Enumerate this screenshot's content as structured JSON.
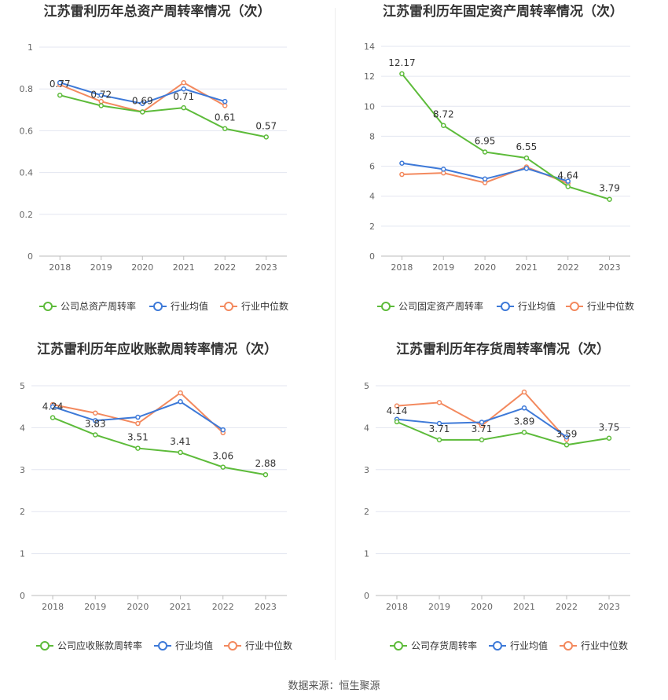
{
  "colors": {
    "company": "#5dbb3a",
    "industry_avg": "#3d79d8",
    "industry_median": "#f3895e"
  },
  "source": "数据来源：恒生聚源",
  "chart_data": [
    {
      "type": "line",
      "title": "江苏雷利历年总资产周转率情况（次）",
      "x": [
        "2018",
        "2019",
        "2020",
        "2021",
        "2022",
        "2023"
      ],
      "ylim": [
        0,
        1
      ],
      "yticks": [
        "0",
        "0.2",
        "0.4",
        "0.6",
        "0.8",
        "1"
      ],
      "ytick_values": [
        0,
        0.2,
        0.4,
        0.6,
        0.8,
        1
      ],
      "grid": true,
      "legend_position": "bottom",
      "series": [
        {
          "name": "公司总资产周转率",
          "values": [
            0.77,
            0.72,
            0.69,
            0.71,
            0.61,
            0.57
          ],
          "labels": [
            "0.77",
            "0.72",
            "0.69",
            "0.71",
            "0.61",
            "0.57"
          ]
        },
        {
          "name": "行业均值",
          "values": [
            0.83,
            0.77,
            0.73,
            0.8,
            0.74,
            null
          ]
        },
        {
          "name": "行业中位数",
          "values": [
            0.82,
            0.74,
            0.69,
            0.83,
            0.72,
            null
          ]
        }
      ]
    },
    {
      "type": "line",
      "title": "江苏雷利历年固定资产周转率情况（次）",
      "x": [
        "2018",
        "2019",
        "2020",
        "2021",
        "2022",
        "2023"
      ],
      "ylim": [
        0,
        14
      ],
      "yticks": [
        "0",
        "2",
        "4",
        "6",
        "8",
        "10",
        "12",
        "14"
      ],
      "ytick_values": [
        0,
        2,
        4,
        6,
        8,
        10,
        12,
        14
      ],
      "grid": true,
      "legend_position": "bottom",
      "series": [
        {
          "name": "公司固定资产周转率",
          "values": [
            12.17,
            8.72,
            6.95,
            6.55,
            4.64,
            3.79
          ],
          "labels": [
            "12.17",
            "8.72",
            "6.95",
            "6.55",
            "4.64",
            "3.79"
          ]
        },
        {
          "name": "行业均值",
          "values": [
            6.2,
            5.8,
            5.15,
            5.85,
            5.0,
            null
          ]
        },
        {
          "name": "行业中位数",
          "values": [
            5.45,
            5.55,
            4.9,
            5.95,
            4.85,
            null
          ]
        }
      ]
    },
    {
      "type": "line",
      "title": "江苏雷利历年应收账款周转率情况（次）",
      "x": [
        "2018",
        "2019",
        "2020",
        "2021",
        "2022",
        "2023"
      ],
      "ylim": [
        0,
        5
      ],
      "yticks": [
        "0",
        "1",
        "2",
        "3",
        "4",
        "5"
      ],
      "ytick_values": [
        0,
        1,
        2,
        3,
        4,
        5
      ],
      "grid": true,
      "legend_position": "bottom",
      "series": [
        {
          "name": "公司应收账款周转率",
          "values": [
            4.24,
            3.83,
            3.51,
            3.41,
            3.06,
            2.88
          ],
          "labels": [
            "4.24",
            "3.83",
            "3.51",
            "3.41",
            "3.06",
            "2.88"
          ]
        },
        {
          "name": "行业均值",
          "values": [
            4.5,
            4.17,
            4.25,
            4.62,
            3.95,
            null
          ]
        },
        {
          "name": "行业中位数",
          "values": [
            4.55,
            4.35,
            4.1,
            4.83,
            3.88,
            null
          ]
        }
      ]
    },
    {
      "type": "line",
      "title": "江苏雷利历年存货周转率情况（次）",
      "x": [
        "2018",
        "2019",
        "2020",
        "2021",
        "2022",
        "2023"
      ],
      "ylim": [
        0,
        5
      ],
      "yticks": [
        "0",
        "1",
        "2",
        "3",
        "4",
        "5"
      ],
      "ytick_values": [
        0,
        1,
        2,
        3,
        4,
        5
      ],
      "grid": true,
      "legend_position": "bottom",
      "series": [
        {
          "name": "公司存货周转率",
          "values": [
            4.14,
            3.71,
            3.71,
            3.89,
            3.59,
            3.75
          ],
          "labels": [
            "4.14",
            "3.71",
            "3.71",
            "3.89",
            "3.59",
            "3.75"
          ]
        },
        {
          "name": "行业均值",
          "values": [
            4.2,
            4.1,
            4.13,
            4.47,
            3.78,
            null
          ]
        },
        {
          "name": "行业中位数",
          "values": [
            4.52,
            4.6,
            4.05,
            4.85,
            3.72,
            null
          ]
        }
      ]
    }
  ]
}
